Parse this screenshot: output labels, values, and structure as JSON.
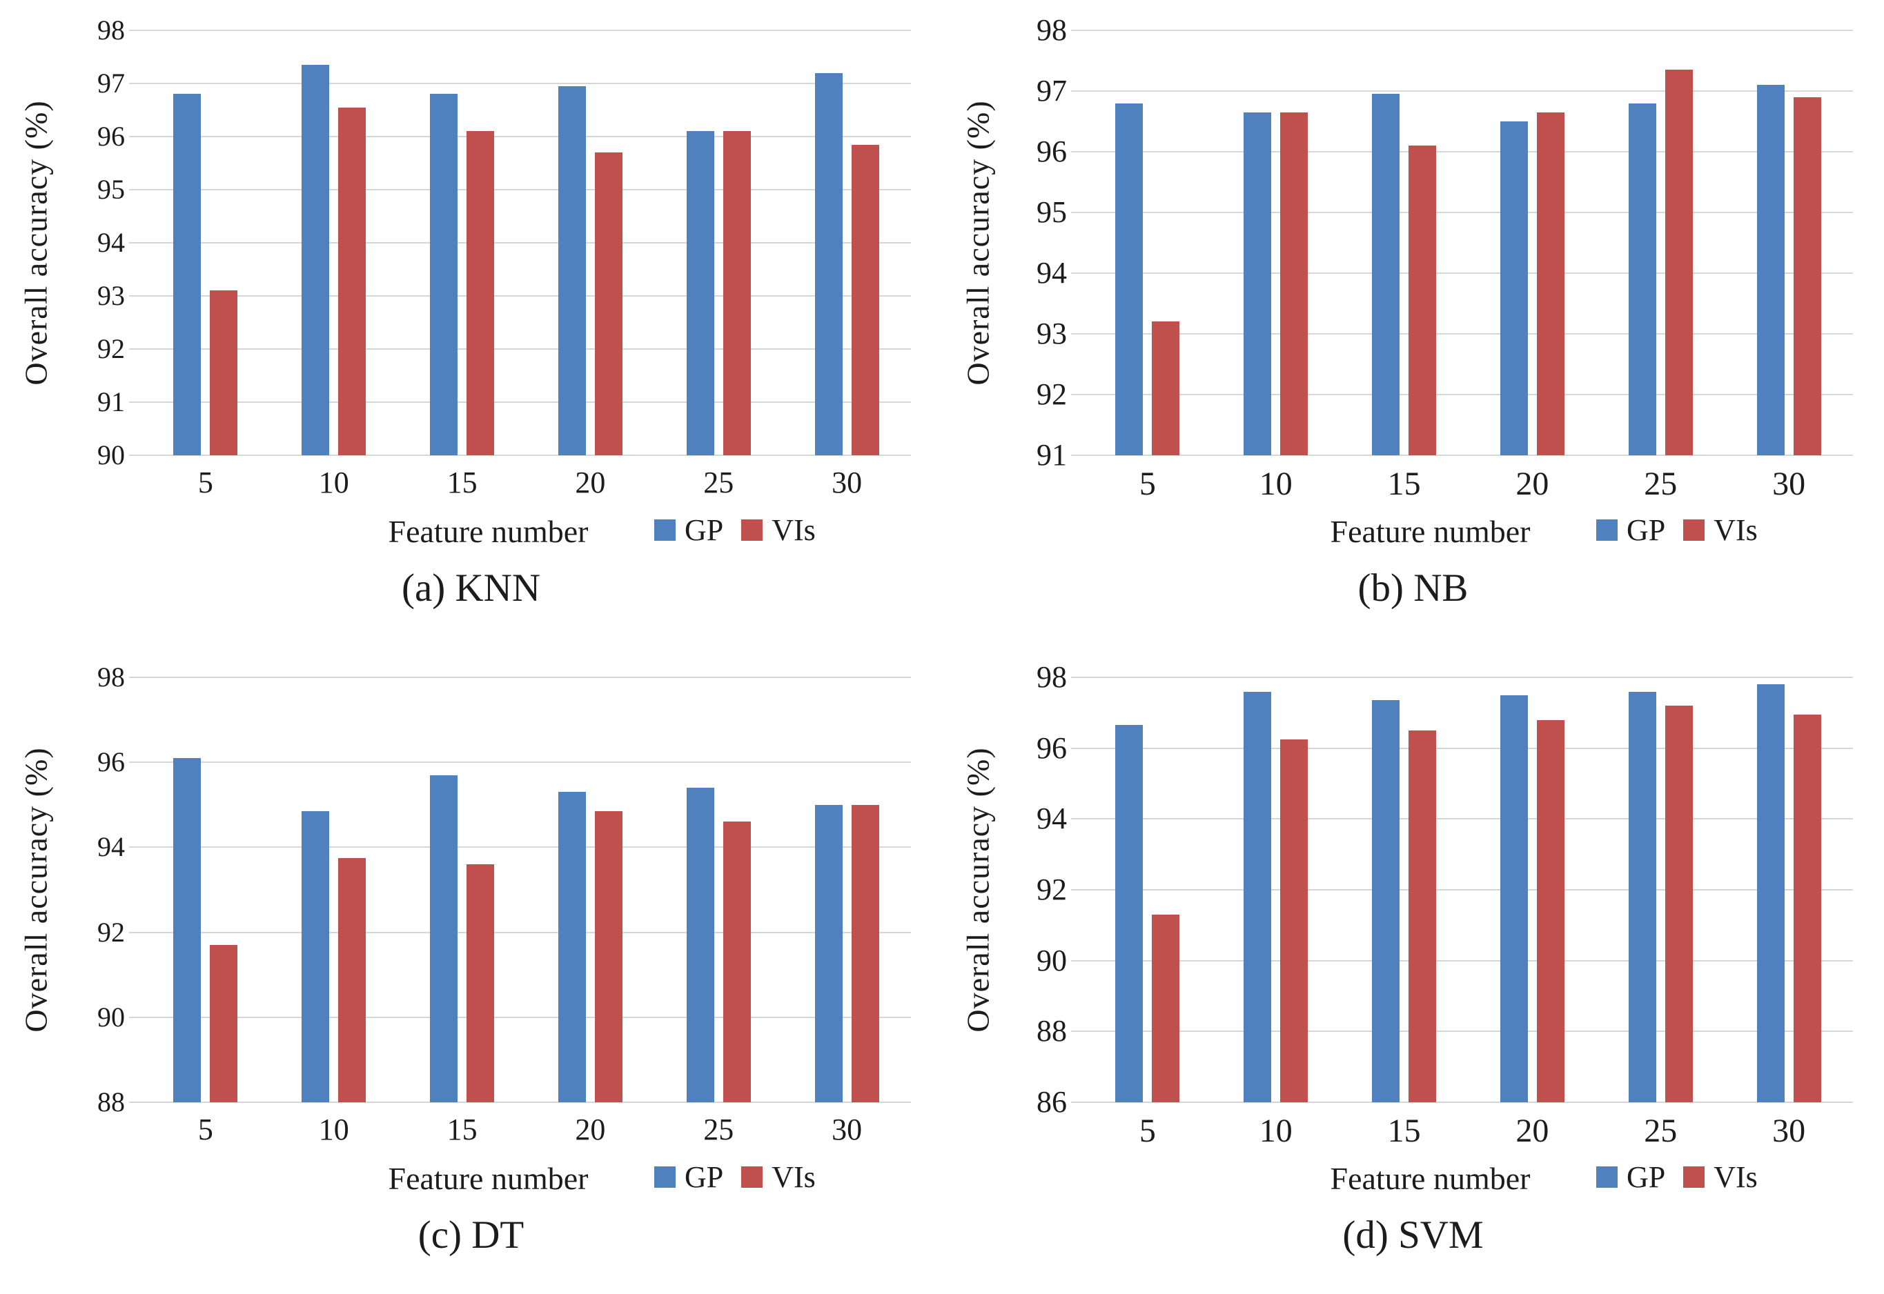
{
  "figure": {
    "background": "#ffffff",
    "text_color": "#1c1c1c"
  },
  "colors": {
    "gp": "#4e81bd",
    "vis": "#c0504d",
    "gridline": "#d6d6d6"
  },
  "chart_data": [
    {
      "id": "knn",
      "type": "bar",
      "caption": "(a) KNN",
      "xlabel": "Feature number",
      "ylabel": "Overall accuracy (%)",
      "categories": [
        "5",
        "10",
        "15",
        "20",
        "25",
        "30"
      ],
      "series": [
        {
          "name": "GP",
          "color": "#4e81bd",
          "values": [
            96.8,
            97.35,
            96.8,
            96.95,
            96.1,
            97.2
          ]
        },
        {
          "name": "VIs",
          "color": "#c0504d",
          "values": [
            93.1,
            96.55,
            96.1,
            95.7,
            96.1,
            95.85
          ]
        }
      ],
      "ylim": [
        90,
        98
      ],
      "ytick_step": 1,
      "grid": true,
      "legend_position": "bottom-right"
    },
    {
      "id": "nb",
      "type": "bar",
      "caption": "(b) NB",
      "xlabel": "Feature number",
      "ylabel": "Overall accuracy (%)",
      "categories": [
        "5",
        "10",
        "15",
        "20",
        "25",
        "30"
      ],
      "series": [
        {
          "name": "GP",
          "color": "#4e81bd",
          "values": [
            96.8,
            96.65,
            96.95,
            96.5,
            96.8,
            97.1
          ]
        },
        {
          "name": "VIs",
          "color": "#c0504d",
          "values": [
            93.2,
            96.65,
            96.1,
            96.65,
            97.35,
            96.9
          ]
        }
      ],
      "ylim": [
        91,
        98
      ],
      "ytick_step": 1,
      "grid": true,
      "legend_position": "bottom-right"
    },
    {
      "id": "dt",
      "type": "bar",
      "caption": "(c) DT",
      "xlabel": "Feature number",
      "ylabel": "Overall accuracy (%)",
      "categories": [
        "5",
        "10",
        "15",
        "20",
        "25",
        "30"
      ],
      "series": [
        {
          "name": "GP",
          "color": "#4e81bd",
          "values": [
            96.1,
            94.85,
            95.7,
            95.3,
            95.4,
            95.0
          ]
        },
        {
          "name": "VIs",
          "color": "#c0504d",
          "values": [
            91.7,
            93.75,
            93.6,
            94.85,
            94.6,
            95.0
          ]
        }
      ],
      "ylim": [
        88,
        98
      ],
      "ytick_step": 2,
      "grid": true,
      "legend_position": "bottom-right"
    },
    {
      "id": "svm",
      "type": "bar",
      "caption": "(d) SVM",
      "xlabel": "Feature number",
      "ylabel": "Overall accuracy (%)",
      "categories": [
        "5",
        "10",
        "15",
        "20",
        "25",
        "30"
      ],
      "series": [
        {
          "name": "GP",
          "color": "#4e81bd",
          "values": [
            96.65,
            97.6,
            97.35,
            97.5,
            97.6,
            97.8
          ]
        },
        {
          "name": "VIs",
          "color": "#c0504d",
          "values": [
            91.3,
            96.25,
            96.5,
            96.8,
            97.2,
            96.95
          ]
        }
      ],
      "ylim": [
        86,
        98
      ],
      "ytick_step": 2,
      "grid": true,
      "legend_position": "bottom-right"
    }
  ]
}
